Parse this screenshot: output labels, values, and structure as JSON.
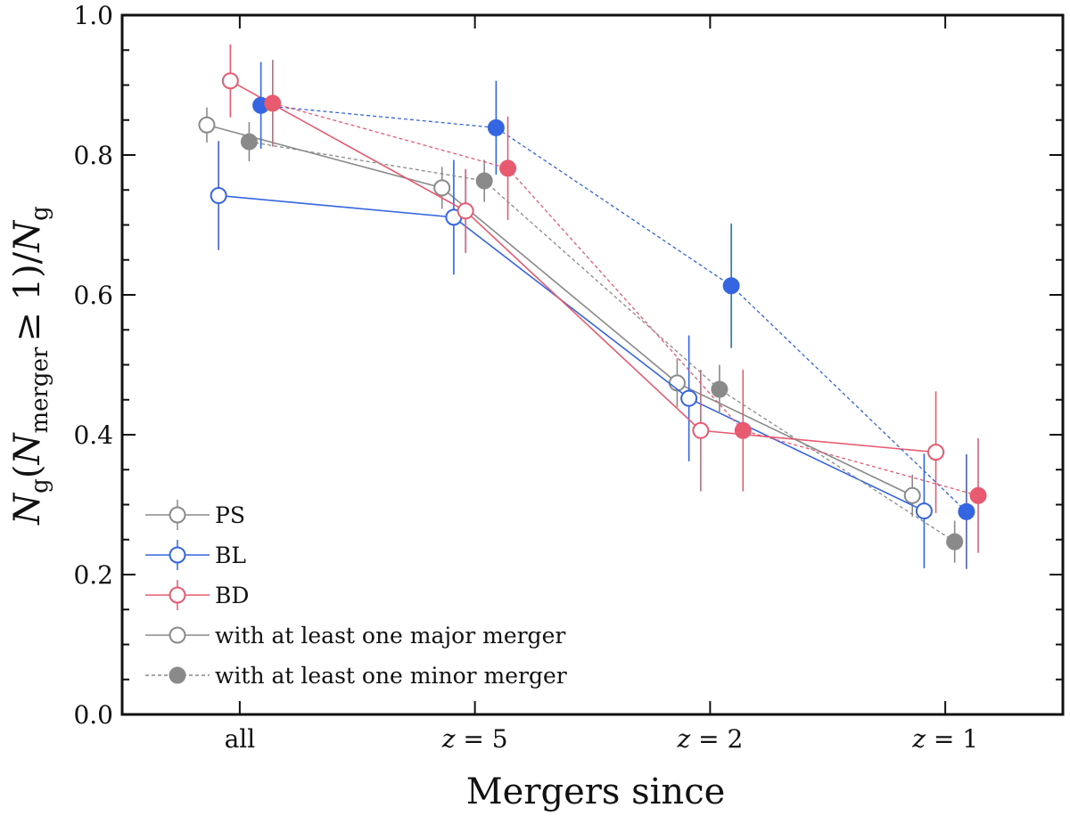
{
  "chart_data": {
    "type": "scatter",
    "xlabel": "Mergers since",
    "ylabel": {
      "n": "N",
      "g": "g",
      "merger": "merger",
      "cond": "≥ 1)",
      "lp": "(",
      "slash": "/"
    },
    "categories": [
      "all",
      "z = 5",
      "z = 2",
      "z = 1"
    ],
    "category_parts": [
      {
        "var": "",
        "rest": "all"
      },
      {
        "var": "z",
        "rest": " = 5"
      },
      {
        "var": "z",
        "rest": " = 2"
      },
      {
        "var": "z",
        "rest": " = 1"
      }
    ],
    "ylim": [
      0.0,
      1.0
    ],
    "yticks": [
      "0.0",
      "0.2",
      "0.4",
      "0.6",
      "0.8",
      "1.0"
    ],
    "grid": false,
    "legend_position": "lower-left",
    "colors": {
      "PS": "#8a8a8a",
      "BL": "#3565e0",
      "BD": "#e85a70"
    },
    "series": [
      {
        "name": "PS",
        "merger": "major",
        "offset": -0.14,
        "values": [
          0.843,
          0.753,
          0.474,
          0.313
        ],
        "errors": [
          0.025,
          0.03,
          0.035,
          0.03
        ]
      },
      {
        "name": "BL",
        "merger": "major",
        "offset": -0.09,
        "values": [
          0.742,
          0.711,
          0.452,
          0.291
        ],
        "errors": [
          0.078,
          0.082,
          0.09,
          0.082
        ]
      },
      {
        "name": "BD",
        "merger": "major",
        "offset": -0.04,
        "values": [
          0.906,
          0.72,
          0.406,
          0.375
        ],
        "errors": [
          0.052,
          0.06,
          0.087,
          0.087
        ]
      },
      {
        "name": "PS",
        "merger": "minor",
        "offset": 0.04,
        "values": [
          0.819,
          0.763,
          0.465,
          0.247
        ],
        "errors": [
          0.028,
          0.03,
          0.035,
          0.03
        ]
      },
      {
        "name": "BL",
        "merger": "minor",
        "offset": 0.09,
        "values": [
          0.871,
          0.839,
          0.613,
          0.29
        ],
        "errors": [
          0.062,
          0.067,
          0.089,
          0.082
        ]
      },
      {
        "name": "BD",
        "merger": "minor",
        "offset": 0.14,
        "values": [
          0.874,
          0.781,
          0.406,
          0.313
        ],
        "errors": [
          0.062,
          0.074,
          0.087,
          0.082
        ]
      }
    ],
    "legend": [
      {
        "label": "PS",
        "color": "PS",
        "style": "errorbar"
      },
      {
        "label": "BL",
        "color": "BL",
        "style": "errorbar"
      },
      {
        "label": "BD",
        "color": "BD",
        "style": "errorbar"
      },
      {
        "label": "with at least one major merger",
        "color": "PS",
        "style": "major"
      },
      {
        "label": "with at least one minor merger",
        "color": "PS",
        "style": "minor"
      }
    ]
  }
}
